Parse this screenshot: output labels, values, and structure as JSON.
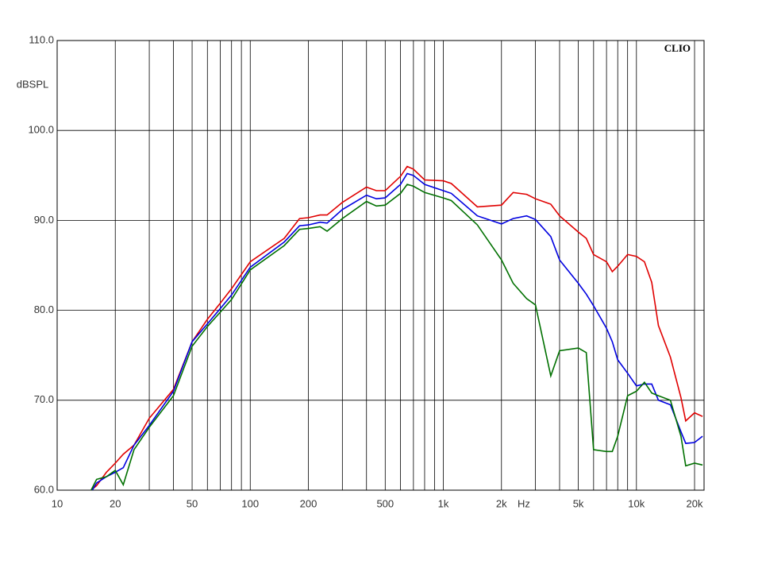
{
  "chart_data": {
    "type": "line",
    "ylabel": "dBSPL",
    "xlabel": "Hz",
    "annotation": "CLIO",
    "log_x": true,
    "grid": true,
    "xlim": [
      10,
      22400
    ],
    "ylim": [
      60,
      110
    ],
    "xticks": [
      10,
      20,
      50,
      100,
      200,
      500,
      {
        "value": 1000,
        "label": "1k"
      },
      {
        "value": 2000,
        "label": "2k"
      },
      {
        "value": 5000,
        "label": "5k"
      },
      {
        "value": 10000,
        "label": "10k"
      },
      {
        "value": 20000,
        "label": "20k"
      }
    ],
    "xminor": [
      30,
      40,
      60,
      70,
      80,
      90,
      300,
      400,
      600,
      700,
      800,
      900,
      3000,
      4000,
      6000,
      7000,
      8000,
      9000
    ],
    "yticks": [
      {
        "value": 60,
        "label": "60.0"
      },
      {
        "value": 70,
        "label": "70.0"
      },
      {
        "value": 80,
        "label": "80.0"
      },
      {
        "value": 90,
        "label": "90.0"
      },
      {
        "value": 100,
        "label": "100.0"
      },
      {
        "value": 110,
        "label": "110.0"
      }
    ],
    "x": [
      15,
      16,
      18,
      20,
      22,
      25,
      30,
      40,
      50,
      60,
      70,
      80,
      100,
      150,
      180,
      200,
      230,
      250,
      300,
      400,
      450,
      500,
      600,
      650,
      700,
      800,
      1000,
      1100,
      1500,
      2000,
      2300,
      2700,
      3000,
      3600,
      4000,
      5000,
      5500,
      6000,
      7000,
      7500,
      8000,
      9000,
      10000,
      11000,
      12000,
      13000,
      15000,
      17000,
      18000,
      20000,
      22000
    ],
    "series": [
      {
        "color": "#e00000",
        "values": [
          60,
          60.5,
          62,
          63,
          64,
          65,
          68,
          71.2,
          76.5,
          79,
          80.8,
          82.4,
          85.4,
          88,
          90.2,
          90.3,
          90.6,
          90.6,
          92,
          93.7,
          93.3,
          93.3,
          94.9,
          96,
          95.7,
          94.5,
          94.4,
          94.1,
          91.5,
          91.7,
          93.1,
          92.9,
          92.4,
          91.8,
          90.5,
          88.7,
          88,
          86.2,
          85.4,
          84.3,
          84.9,
          86.2,
          86,
          85.4,
          83.1,
          78.3,
          74.8,
          70.3,
          67.7,
          68.6,
          68.2
        ]
      },
      {
        "color": "#0000e0",
        "values": [
          59.8,
          60.8,
          61.5,
          62,
          62.5,
          65,
          67.2,
          71,
          76.5,
          78.5,
          80.2,
          81.7,
          84.8,
          87.6,
          89.4,
          89.5,
          89.8,
          89.7,
          91.2,
          92.8,
          92.4,
          92.5,
          94,
          95.2,
          95,
          94,
          93.3,
          93,
          90.5,
          89.6,
          90.2,
          90.5,
          90.1,
          88.2,
          85.6,
          83,
          81.8,
          80.5,
          78,
          76.5,
          74.5,
          73,
          71.6,
          71.8,
          71.8,
          70,
          69.5,
          66.5,
          65.2,
          65.3,
          66
        ]
      },
      {
        "color": "#007000",
        "values": [
          60,
          61.2,
          61.5,
          62.2,
          60.6,
          64.5,
          67,
          70.5,
          76,
          78.2,
          79.8,
          81.2,
          84.5,
          87.2,
          89,
          89.1,
          89.3,
          88.8,
          90.2,
          92.1,
          91.6,
          91.7,
          93,
          94,
          93.8,
          93.1,
          92.5,
          92.2,
          89.5,
          85.6,
          83,
          81.3,
          80.6,
          72.7,
          75.5,
          75.8,
          75.3,
          64.5,
          64.3,
          64.3,
          66,
          70.5,
          71,
          72,
          70.8,
          70.5,
          70,
          66,
          62.7,
          63,
          62.8
        ]
      }
    ]
  }
}
